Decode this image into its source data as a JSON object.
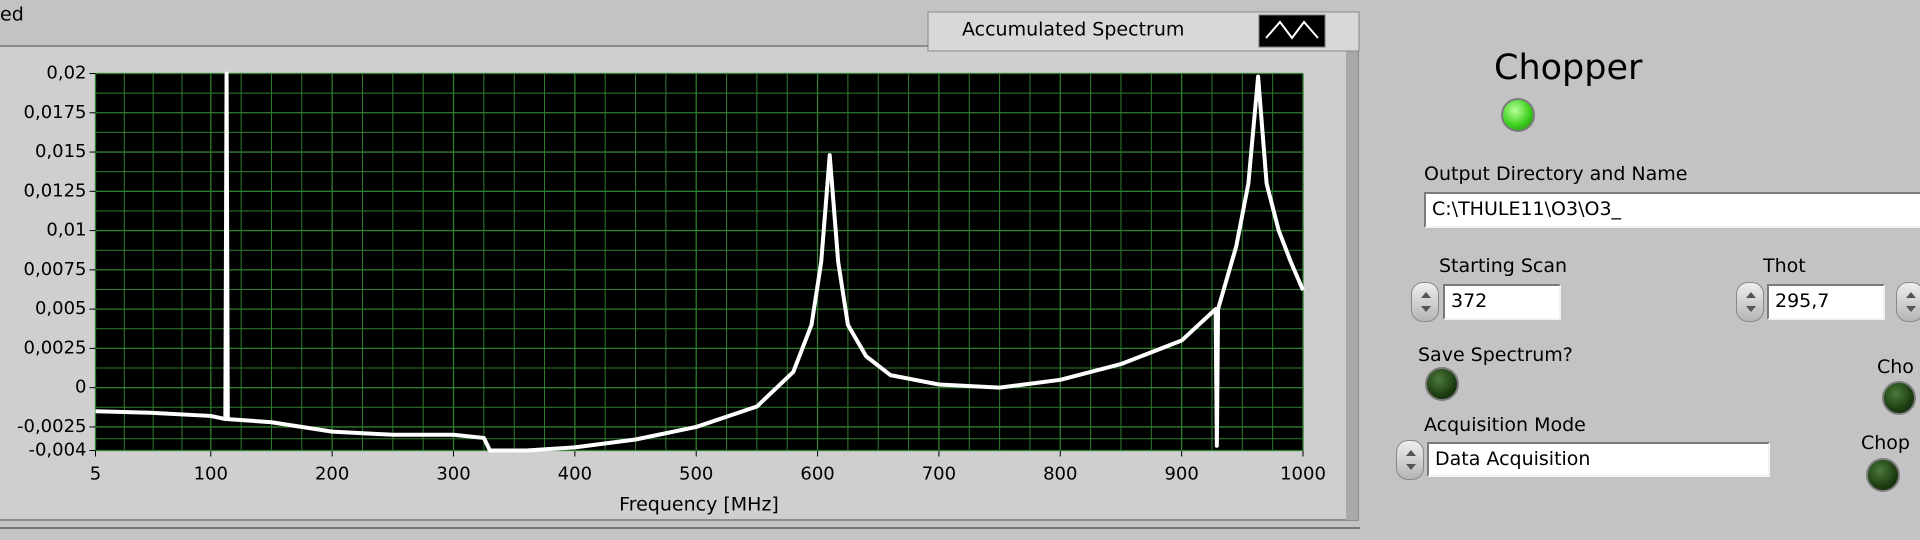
{
  "chart_data": {
    "type": "line",
    "x_label": "Frequency [MHz]",
    "xlim": [
      5,
      1000
    ],
    "xticks": [
      5,
      100,
      200,
      300,
      400,
      500,
      600,
      700,
      800,
      900,
      1000
    ],
    "ylim": [
      -0.004,
      0.02
    ],
    "yticks": [
      {
        "value": -0.004,
        "label": "-0,004"
      },
      {
        "value": -0.0025,
        "label": "-0,0025"
      },
      0,
      {
        "value": 0.0025,
        "label": "0,0025"
      },
      {
        "value": 0.005,
        "label": "0,005"
      },
      {
        "value": 0.0075,
        "label": "0,0075"
      },
      {
        "value": 0.01,
        "label": "0,01"
      },
      {
        "value": 0.0125,
        "label": "0,0125"
      },
      {
        "value": 0.015,
        "label": "0,015"
      },
      {
        "value": 0.0175,
        "label": "0,0175"
      },
      {
        "value": 0.02,
        "label": "0,02"
      }
    ],
    "grid": true,
    "x": [
      5,
      50,
      100,
      112,
      113,
      114,
      150,
      200,
      250,
      300,
      325,
      330,
      360,
      400,
      450,
      500,
      550,
      580,
      595,
      603,
      610,
      617,
      625,
      640,
      660,
      700,
      750,
      800,
      850,
      900,
      928,
      929,
      930,
      945,
      955,
      963,
      970,
      980,
      990,
      1000
    ],
    "series": [
      {
        "name": "Accumulated Spectrum",
        "color": "#ffffff",
        "values": [
          -0.0015,
          -0.0016,
          -0.0018,
          -0.002,
          0.02,
          -0.002,
          -0.0022,
          -0.0028,
          -0.003,
          -0.003,
          -0.0032,
          -0.004,
          -0.004,
          -0.0038,
          -0.0033,
          -0.0025,
          -0.0012,
          0.001,
          0.004,
          0.008,
          0.0148,
          0.008,
          0.004,
          0.002,
          0.0008,
          0.0002,
          0.0,
          0.0005,
          0.0015,
          0.003,
          0.005,
          -0.0037,
          0.005,
          0.009,
          0.013,
          0.0198,
          0.013,
          0.01,
          0.008,
          0.0062
        ]
      }
    ]
  },
  "panel": {
    "corner_text": "ed",
    "chopper_title": "Chopper",
    "output_label": "Output Directory and Name",
    "output_value": "C:\\THULE11\\O3\\O3_",
    "start_label": "Starting Scan",
    "start_value": "372",
    "thot_label": "Thot",
    "thot_value": "295,7",
    "save_label": "Save Spectrum?",
    "cho_label": "Cho",
    "mode_label": "Acquisition Mode",
    "mode_value": "Data Acquisition",
    "chop_label": "Chop"
  }
}
